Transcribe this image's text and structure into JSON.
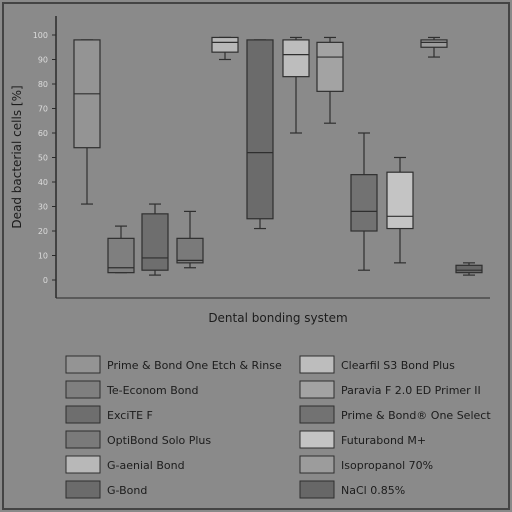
{
  "chart_data": {
    "type": "box",
    "ylabel": "Dead bacterial cells [%]",
    "xlabel": "Dental bonding system",
    "ylim": [
      0,
      100
    ],
    "yticks": [
      0,
      10,
      20,
      30,
      40,
      50,
      60,
      70,
      80,
      90,
      100
    ],
    "grid": false,
    "legend_position": "bottom",
    "series": [
      {
        "name": "Prime & Bond One Etch & Rinse",
        "color": "#949494",
        "min": 31,
        "q1": 54,
        "median": 76,
        "q3": 98,
        "max": 98
      },
      {
        "name": "Te-Econom Bond",
        "color": "#7f7f7f",
        "min": 3,
        "q1": 3,
        "median": 5,
        "q3": 17,
        "max": 22
      },
      {
        "name": "ExciTE F",
        "color": "#6e6e6e",
        "min": 2,
        "q1": 4,
        "median": 9,
        "q3": 27,
        "max": 31
      },
      {
        "name": "OptiBond Solo Plus",
        "color": "#7a7a7a",
        "min": 5,
        "q1": 7,
        "median": 8,
        "q3": 17,
        "max": 28
      },
      {
        "name": "G-aenial Bond",
        "color": "#b8b8b8",
        "min": 90,
        "q1": 93,
        "median": 97,
        "q3": 99,
        "max": 99
      },
      {
        "name": "G-Bond",
        "color": "#6b6b6b",
        "min": 21,
        "q1": 25,
        "median": 52,
        "q3": 98,
        "max": 98
      },
      {
        "name": "Clearfil S3 Bond Plus",
        "color": "#bdbdbd",
        "min": 60,
        "q1": 83,
        "median": 92,
        "q3": 98,
        "max": 99
      },
      {
        "name": "Paravia F 2.0 ED Primer II",
        "color": "#a3a3a3",
        "min": 64,
        "q1": 77,
        "median": 91,
        "q3": 97,
        "max": 99
      },
      {
        "name": "Prime & Bond® One Select",
        "color": "#727272",
        "min": 4,
        "q1": 20,
        "median": 28,
        "q3": 43,
        "max": 60
      },
      {
        "name": "Futurabond M+",
        "color": "#c4c4c4",
        "min": 7,
        "q1": 21,
        "median": 26,
        "q3": 44,
        "max": 50
      },
      {
        "name": "Isopropanol   70%",
        "color": "#9c9c9c",
        "min": 91,
        "q1": 95,
        "median": 97,
        "q3": 98,
        "max": 99
      },
      {
        "name": "NaCl 0.85%",
        "color": "#676767",
        "min": 2,
        "q1": 3,
        "median": 4,
        "q3": 6,
        "max": 7
      }
    ]
  }
}
